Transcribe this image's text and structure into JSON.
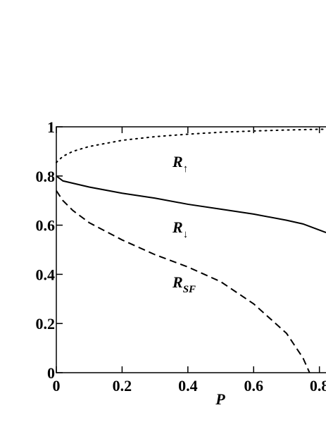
{
  "chart_data": {
    "type": "line",
    "xlabel": "P",
    "xlim": [
      0,
      0.82
    ],
    "xticks": [
      0,
      0.2,
      0.4,
      0.6,
      0.8
    ],
    "ylim": [
      0,
      1
    ],
    "yticks": [
      0,
      0.2,
      0.4,
      0.6,
      0.8,
      1
    ],
    "series": [
      {
        "color": "#000000",
        "style": "dotted",
        "x": [
          0,
          0.02,
          0.05,
          0.1,
          0.2,
          0.3,
          0.4,
          0.5,
          0.6,
          0.7,
          0.8,
          0.82
        ],
        "values": [
          0.855,
          0.88,
          0.9,
          0.92,
          0.945,
          0.96,
          0.97,
          0.978,
          0.983,
          0.987,
          0.99,
          0.99
        ]
      },
      {
        "color": "#000000",
        "style": "solid",
        "x": [
          0,
          0.02,
          0.1,
          0.2,
          0.3,
          0.4,
          0.5,
          0.6,
          0.7,
          0.75,
          0.8,
          0.82
        ],
        "values": [
          0.8,
          0.78,
          0.755,
          0.73,
          0.71,
          0.685,
          0.665,
          0.645,
          0.62,
          0.605,
          0.58,
          0.57
        ]
      },
      {
        "color": "#000000",
        "style": "dashed",
        "x": [
          0,
          0.02,
          0.05,
          0.1,
          0.2,
          0.3,
          0.4,
          0.5,
          0.6,
          0.7,
          0.75,
          0.77
        ],
        "values": [
          0.74,
          0.7,
          0.66,
          0.61,
          0.54,
          0.48,
          0.43,
          0.37,
          0.28,
          0.16,
          0.06,
          0
        ]
      }
    ],
    "annotations": [
      {
        "text": "R",
        "sub": "↑"
      },
      {
        "text": "R",
        "sub": "↓"
      },
      {
        "text": "R",
        "sub": "SF"
      }
    ]
  }
}
